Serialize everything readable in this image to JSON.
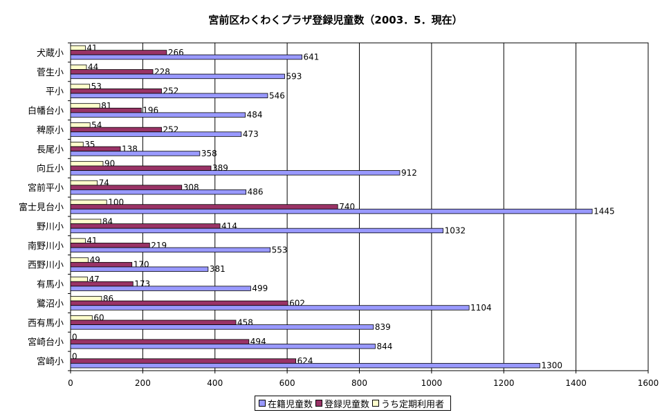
{
  "chart_data": {
    "type": "bar",
    "orientation": "horizontal",
    "title": "宮前区わくわくプラザ登録児童数（2003．5．現在）",
    "xlim": [
      0,
      1600
    ],
    "x_ticks": [
      "0",
      "200",
      "400",
      "600",
      "800",
      "1000",
      "1200",
      "1400",
      "1600"
    ],
    "categories": [
      "犬蔵小",
      "菅生小",
      "平小",
      "白幡台小",
      "稗原小",
      "長尾小",
      "向丘小",
      "宮前平小",
      "富士見台小",
      "野川小",
      "南野川小",
      "西野川小",
      "有馬小",
      "鷺沼小",
      "西有馬小",
      "宮崎台小",
      "宮崎小"
    ],
    "series": [
      {
        "name": "在籍児童数",
        "color": "#9999ff",
        "values": [
          641,
          593,
          546,
          484,
          473,
          358,
          912,
          486,
          1445,
          1032,
          553,
          381,
          499,
          1104,
          839,
          844,
          1300
        ]
      },
      {
        "name": "登録児童数",
        "color": "#993366",
        "values": [
          266,
          228,
          252,
          196,
          252,
          138,
          389,
          308,
          740,
          414,
          219,
          170,
          173,
          602,
          458,
          494,
          624
        ]
      },
      {
        "name": "うち定期利用者",
        "color": "#ffffcc",
        "values": [
          41,
          44,
          53,
          81,
          54,
          35,
          90,
          74,
          100,
          84,
          41,
          49,
          47,
          86,
          60,
          0,
          0
        ]
      }
    ],
    "gridlines": "vertical",
    "legend_position": "bottom"
  }
}
